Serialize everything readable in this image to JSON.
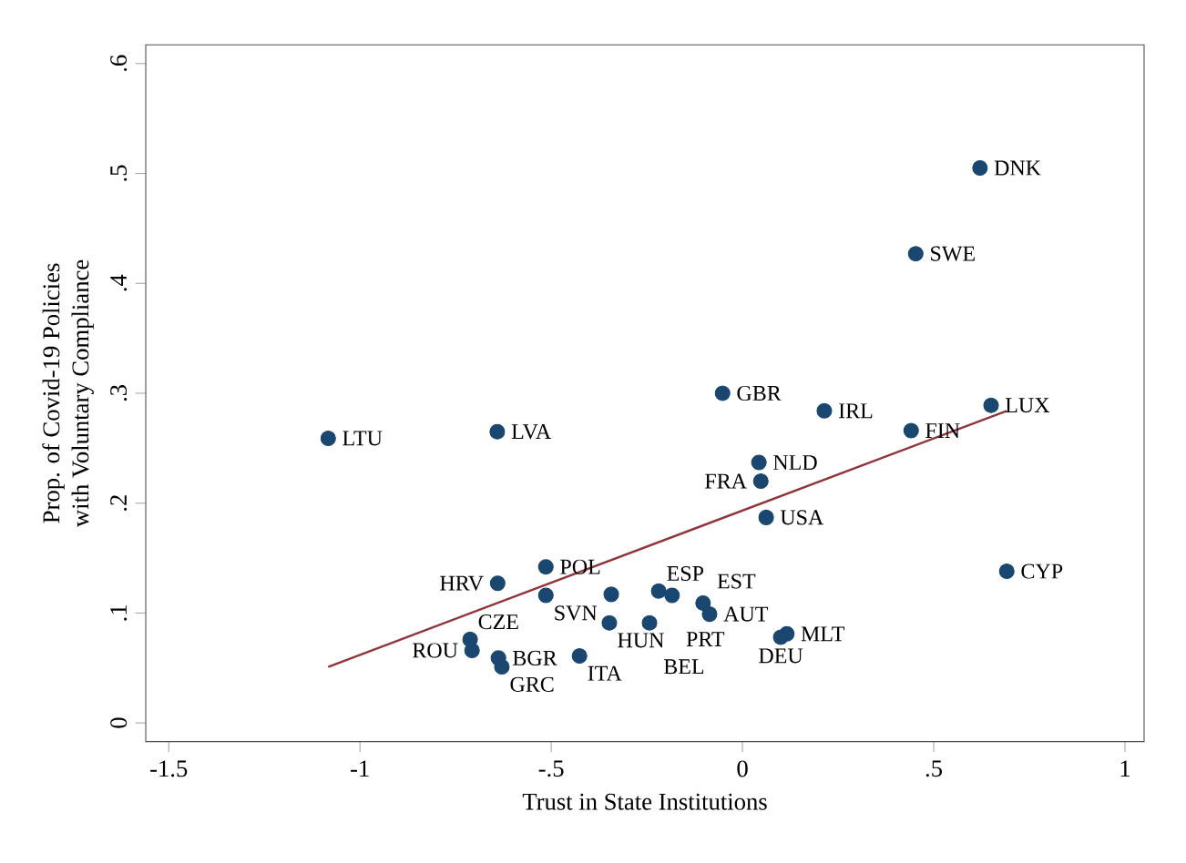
{
  "chart_data": {
    "type": "scatter",
    "xlabel": "Trust in State Institutions",
    "ylabel": "Prop. of Covid-19 Policies\nwith Voluntary Compliance",
    "xlim": [
      -1.56,
      1.05
    ],
    "ylim": [
      -0.017,
      0.617
    ],
    "xticks": [
      {
        "value": -1.5,
        "label": "-1.5"
      },
      -1,
      {
        "value": -0.5,
        "label": "-.5"
      },
      0,
      {
        "value": 0.5,
        "label": ".5"
      },
      1
    ],
    "yticks": [
      0,
      {
        "value": 0.1,
        "label": ".1"
      },
      {
        "value": 0.2,
        "label": ".2"
      },
      {
        "value": 0.3,
        "label": ".3"
      },
      {
        "value": 0.4,
        "label": ".4"
      },
      {
        "value": 0.5,
        "label": ".5"
      },
      {
        "value": 0.6,
        "label": ".6"
      }
    ],
    "grid": false,
    "series": [
      {
        "marker": "circle",
        "color": "#1a476f",
        "x": [
          0.621,
          0.453,
          -0.052,
          0.214,
          0.65,
          0.441,
          -1.083,
          -0.641,
          0.043,
          0.048,
          0.062,
          0.691,
          -0.514,
          -0.64,
          -0.514,
          -0.343,
          -0.219,
          -0.184,
          -0.103,
          -0.086,
          -0.348,
          -0.243,
          0.116,
          0.1,
          -0.712,
          -0.707,
          -0.638,
          -0.629,
          -0.426
        ],
        "values": [
          0.505,
          0.427,
          0.3,
          0.284,
          0.289,
          0.266,
          0.259,
          0.265,
          0.237,
          0.22,
          0.187,
          0.138,
          0.142,
          0.127,
          0.116,
          0.117,
          0.12,
          0.116,
          0.109,
          0.099,
          0.091,
          0.091,
          0.081,
          0.078,
          0.076,
          0.066,
          0.059,
          0.051,
          0.061
        ]
      },
      {
        "type": "line",
        "marker": "none",
        "color": "#90353b",
        "x": [
          -1.083,
          0.691
        ],
        "values": [
          0.051,
          0.284
        ]
      }
    ],
    "annotations": [
      {
        "text": "DNK",
        "x": 0.621,
        "y": 0.505
      },
      {
        "text": "SWE",
        "x": 0.453,
        "y": 0.427
      },
      {
        "text": "GBR",
        "x": -0.052,
        "y": 0.3
      },
      {
        "text": "IRL",
        "x": 0.214,
        "y": 0.284
      },
      {
        "text": "LUX",
        "x": 0.65,
        "y": 0.289
      },
      {
        "text": "FIN",
        "x": 0.441,
        "y": 0.266
      },
      {
        "text": "LTU",
        "x": -1.083,
        "y": 0.259
      },
      {
        "text": "LVA",
        "x": -0.641,
        "y": 0.265
      },
      {
        "text": "NLD",
        "x": 0.043,
        "y": 0.237
      },
      {
        "text": "FRA",
        "x": 0.048,
        "y": 0.22
      },
      {
        "text": "USA",
        "x": 0.062,
        "y": 0.187
      },
      {
        "text": "CYP",
        "x": 0.691,
        "y": 0.138
      },
      {
        "text": "POL",
        "x": -0.514,
        "y": 0.142
      },
      {
        "text": "HRV",
        "x": -0.64,
        "y": 0.127
      },
      {
        "text": "SVN",
        "x": -0.514,
        "y": 0.116
      },
      {
        "text": "ESP",
        "x": -0.219,
        "y": 0.12
      },
      {
        "text": "PRT",
        "x": -0.184,
        "y": 0.116
      },
      {
        "text": "EST",
        "x": -0.103,
        "y": 0.109
      },
      {
        "text": "AUT",
        "x": -0.086,
        "y": 0.099
      },
      {
        "text": "HUN",
        "x": -0.348,
        "y": 0.091
      },
      {
        "text": "BEL",
        "x": -0.243,
        "y": 0.091
      },
      {
        "text": "MLT",
        "x": 0.116,
        "y": 0.081
      },
      {
        "text": "DEU",
        "x": 0.1,
        "y": 0.078
      },
      {
        "text": "CZE",
        "x": -0.712,
        "y": 0.076
      },
      {
        "text": "ROU",
        "x": -0.707,
        "y": 0.066
      },
      {
        "text": "BGR",
        "x": -0.638,
        "y": 0.059
      },
      {
        "text": "GRC",
        "x": -0.629,
        "y": 0.051
      },
      {
        "text": "ITA",
        "x": -0.426,
        "y": 0.061
      }
    ]
  }
}
